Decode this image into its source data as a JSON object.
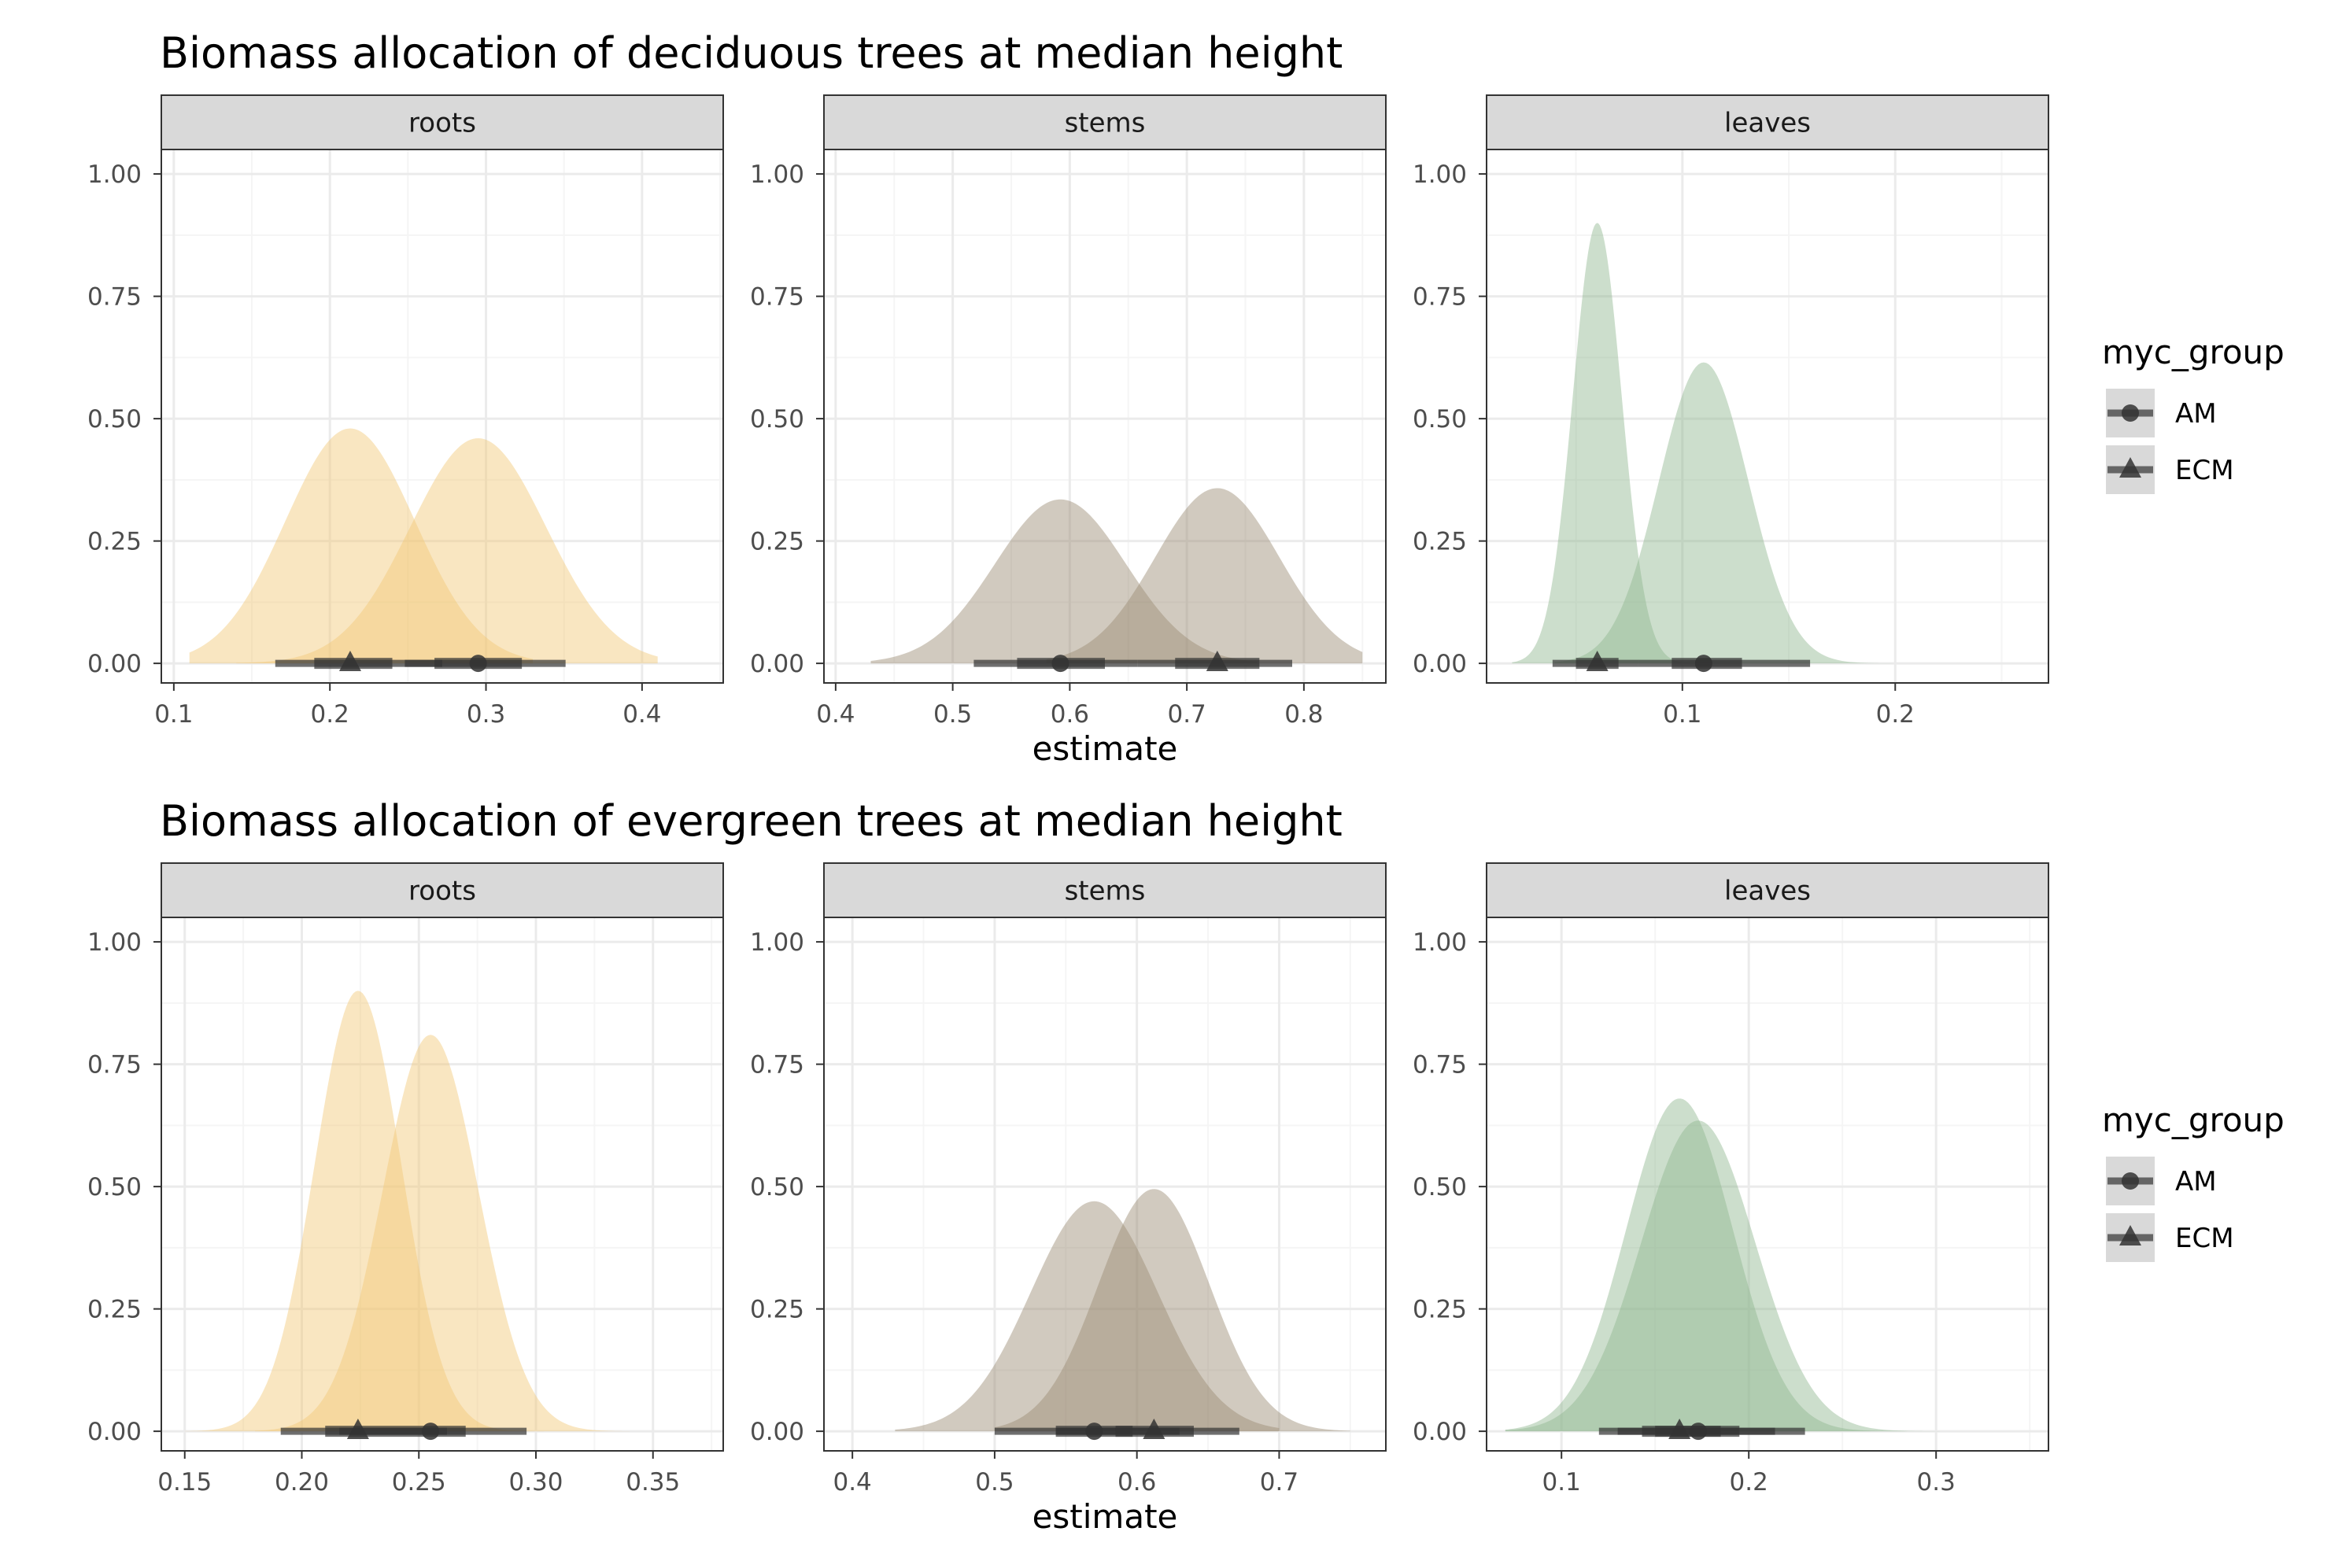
{
  "colors": {
    "roots": "#f2c876",
    "stems": "#9a8a72",
    "leaves": "#8fb58f",
    "point": "#333333",
    "grid_major": "#ebebeb",
    "grid_minor": "#f5f5f5",
    "strip_bg": "#d9d9d9",
    "legend_key_bg": "#d9d9d9"
  },
  "chart_data": [
    {
      "type": "area",
      "title": "Biomass allocation of deciduous trees at median height",
      "xlabel": "estimate",
      "ylabel": "",
      "ylim": [
        -0.04,
        1.05
      ],
      "y_ticks": [
        0,
        0.25,
        0.5,
        0.75,
        1
      ],
      "y_tick_labels": [
        "0.00",
        "0.25",
        "0.50",
        "0.75",
        "1.00"
      ],
      "legend": {
        "title": "myc_group",
        "position": "right",
        "entries": [
          {
            "label": "AM",
            "shape": "circle"
          },
          {
            "label": "ECM",
            "shape": "triangle"
          }
        ]
      },
      "panels": [
        {
          "facet": "roots",
          "color_key": "roots",
          "xlim": [
            0.092,
            0.452
          ],
          "x_ticks": [
            0.1,
            0.2,
            0.3,
            0.4
          ],
          "x_tick_labels": [
            "0.1",
            "0.2",
            "0.3",
            "0.4"
          ],
          "series": [
            {
              "group": "AM",
              "density": {
                "mean": 0.295,
                "sd": 0.0435,
                "peak": 0.46,
                "x_range": [
                  0.14,
                  0.41
                ]
              },
              "point": 0.295,
              "interval_66": [
                0.267,
                0.323
              ],
              "interval_95": [
                0.248,
                0.351
              ]
            },
            {
              "group": "ECM",
              "density": {
                "mean": 0.213,
                "sd": 0.0415,
                "peak": 0.48,
                "x_range": [
                  0.11,
                  0.33
                ]
              },
              "point": 0.213,
              "interval_66": [
                0.19,
                0.24
              ],
              "interval_95": [
                0.165,
                0.272
              ]
            }
          ]
        },
        {
          "facet": "stems",
          "color_key": "stems",
          "xlim": [
            0.39,
            0.87
          ],
          "x_ticks": [
            0.4,
            0.5,
            0.6,
            0.7,
            0.8
          ],
          "x_tick_labels": [
            "0.4",
            "0.5",
            "0.6",
            "0.7",
            "0.8"
          ],
          "series": [
            {
              "group": "AM",
              "density": {
                "mean": 0.592,
                "sd": 0.056,
                "peak": 0.335,
                "x_range": [
                  0.43,
                  0.76
                ]
              },
              "point": 0.592,
              "interval_66": [
                0.555,
                0.63
              ],
              "interval_95": [
                0.518,
                0.658
              ]
            },
            {
              "group": "ECM",
              "density": {
                "mean": 0.726,
                "sd": 0.053,
                "peak": 0.358,
                "x_range": [
                  0.58,
                  0.85
                ]
              },
              "point": 0.726,
              "interval_66": [
                0.69,
                0.762
              ],
              "interval_95": [
                0.658,
                0.79
              ]
            }
          ]
        },
        {
          "facet": "leaves",
          "color_key": "leaves",
          "xlim": [
            0.008,
            0.272
          ],
          "x_ticks": [
            0.1,
            0.2
          ],
          "x_tick_labels": [
            "0.1",
            "0.2"
          ],
          "series": [
            {
              "group": "AM",
              "density": {
                "mean": 0.11,
                "sd": 0.021,
                "peak": 0.615,
                "x_range": [
                  0.04,
                  0.24
                ]
              },
              "point": 0.11,
              "interval_66": [
                0.095,
                0.128
              ],
              "interval_95": [
                0.079,
                0.16
              ]
            },
            {
              "group": "ECM",
              "density": {
                "mean": 0.06,
                "sd": 0.0115,
                "peak": 0.9,
                "x_range": [
                  0.02,
                  0.13
                ]
              },
              "point": 0.06,
              "interval_66": [
                0.05,
                0.07
              ],
              "interval_95": [
                0.039,
                0.079
              ]
            }
          ]
        }
      ]
    },
    {
      "type": "area",
      "title": "Biomass allocation of evergreen trees at median height",
      "xlabel": "estimate",
      "ylabel": "",
      "ylim": [
        -0.04,
        1.05
      ],
      "y_ticks": [
        0,
        0.25,
        0.5,
        0.75,
        1
      ],
      "y_tick_labels": [
        "0.00",
        "0.25",
        "0.50",
        "0.75",
        "1.00"
      ],
      "legend": {
        "title": "myc_group",
        "position": "right",
        "entries": [
          {
            "label": "AM",
            "shape": "circle"
          },
          {
            "label": "ECM",
            "shape": "triangle"
          }
        ]
      },
      "panels": [
        {
          "facet": "roots",
          "color_key": "roots",
          "xlim": [
            0.14,
            0.38
          ],
          "x_ticks": [
            0.15,
            0.2,
            0.25,
            0.3,
            0.35
          ],
          "x_tick_labels": [
            "0.15",
            "0.20",
            "0.25",
            "0.30",
            "0.35"
          ],
          "series": [
            {
              "group": "AM",
              "density": {
                "mean": 0.255,
                "sd": 0.0205,
                "peak": 0.81,
                "x_range": [
                  0.18,
                  0.34
                ]
              },
              "point": 0.255,
              "interval_66": [
                0.24,
                0.27
              ],
              "interval_95": [
                0.216,
                0.296
              ]
            },
            {
              "group": "ECM",
              "density": {
                "mean": 0.224,
                "sd": 0.0185,
                "peak": 0.9,
                "x_range": [
                  0.15,
                  0.31
                ]
              },
              "point": 0.224,
              "interval_66": [
                0.21,
                0.24
              ],
              "interval_95": [
                0.191,
                0.262
              ]
            }
          ]
        },
        {
          "facet": "stems",
          "color_key": "stems",
          "xlim": [
            0.38,
            0.775
          ],
          "x_ticks": [
            0.4,
            0.5,
            0.6,
            0.7
          ],
          "x_tick_labels": [
            "0.4",
            "0.5",
            "0.6",
            "0.7"
          ],
          "series": [
            {
              "group": "AM",
              "density": {
                "mean": 0.57,
                "sd": 0.0445,
                "peak": 0.47,
                "x_range": [
                  0.43,
                  0.7
                ]
              },
              "point": 0.57,
              "interval_66": [
                0.543,
                0.597
              ],
              "interval_95": [
                0.5,
                0.63
              ]
            },
            {
              "group": "ECM",
              "density": {
                "mean": 0.612,
                "sd": 0.039,
                "peak": 0.495,
                "x_range": [
                  0.5,
                  0.75
                ]
              },
              "point": 0.612,
              "interval_66": [
                0.585,
                0.64
              ],
              "interval_95": [
                0.543,
                0.672
              ]
            }
          ]
        },
        {
          "facet": "leaves",
          "color_key": "leaves",
          "xlim": [
            0.06,
            0.36
          ],
          "x_ticks": [
            0.1,
            0.2,
            0.3
          ],
          "x_tick_labels": [
            "0.1",
            "0.2",
            "0.3"
          ],
          "series": [
            {
              "group": "AM",
              "density": {
                "mean": 0.173,
                "sd": 0.0305,
                "peak": 0.635,
                "x_range": [
                  0.07,
                  0.31
                ]
              },
              "point": 0.173,
              "interval_66": [
                0.15,
                0.195
              ],
              "interval_95": [
                0.13,
                0.23
              ]
            },
            {
              "group": "ECM",
              "density": {
                "mean": 0.163,
                "sd": 0.0285,
                "peak": 0.68,
                "x_range": [
                  0.07,
                  0.29
                ]
              },
              "point": 0.163,
              "interval_66": [
                0.143,
                0.185
              ],
              "interval_95": [
                0.12,
                0.214
              ]
            }
          ]
        }
      ]
    }
  ]
}
